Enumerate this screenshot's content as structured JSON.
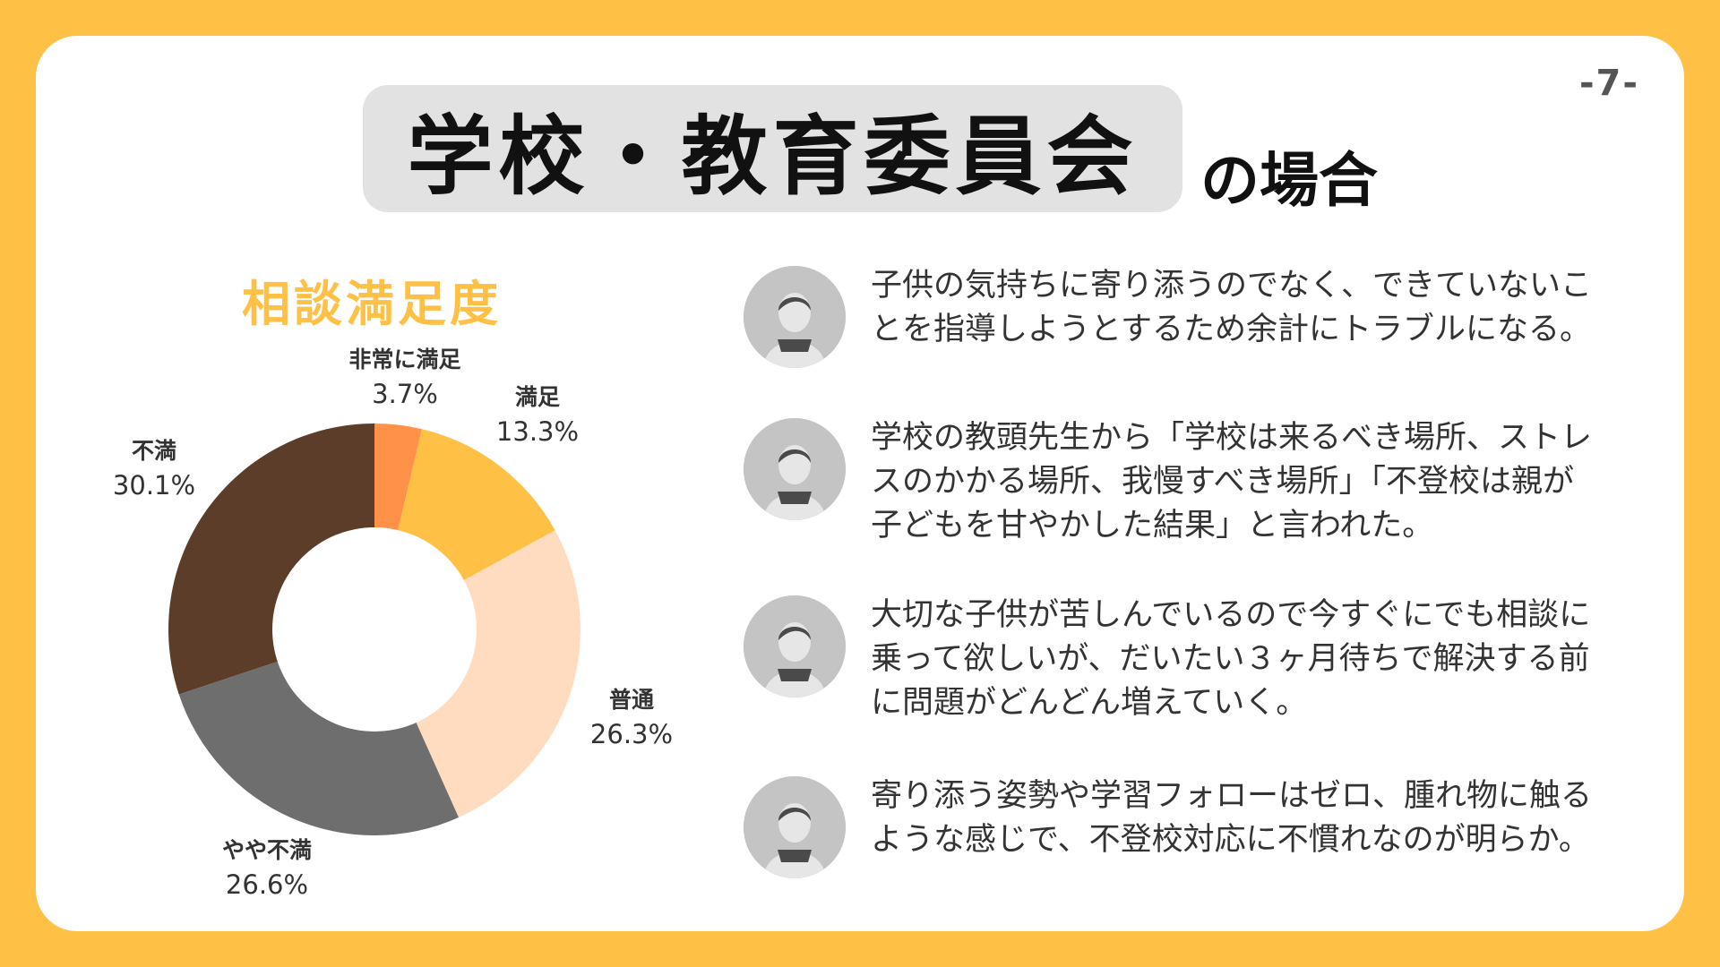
{
  "page_number": "-7-",
  "title": {
    "main": "学校・教育委員会",
    "sub": "の場合"
  },
  "chart_data": {
    "type": "pie",
    "title": "相談満足度",
    "hole": true,
    "categories": [
      "非常に満足",
      "満足",
      "普通",
      "やや不満",
      "不満"
    ],
    "values": [
      3.7,
      13.3,
      26.3,
      26.6,
      30.1
    ],
    "value_labels": [
      "3.7%",
      "13.3%",
      "26.3%",
      "26.6%",
      "30.1%"
    ],
    "colors": [
      "#FF9248",
      "#FFC046",
      "#FFDCC0",
      "#6E6E6E",
      "#5C3D2A"
    ],
    "start": "12 o'clock",
    "direction": "clockwise"
  },
  "comments": [
    {
      "avatar_icon": "person-avatar-icon",
      "lines": [
        "子供の気持ちに寄り添うのでなく、できていないこ",
        "とを指導しようとするため余計にトラブルになる。"
      ]
    },
    {
      "avatar_icon": "person-avatar-icon",
      "lines": [
        "学校の教頭先生から「学校は来るべき場所、ストレ",
        "スのかかる場所、我慢すべき場所」「不登校は親が",
        "子どもを甘やかした結果」と言われた。"
      ]
    },
    {
      "avatar_icon": "person-avatar-icon",
      "lines": [
        "大切な子供が苦しんでいるので今すぐにでも相談に",
        "乗って欲しいが、だいたい３ヶ月待ちで解決する前",
        "に問題がどんどん増えていく。"
      ]
    },
    {
      "avatar_icon": "person-avatar-icon",
      "lines": [
        "寄り添う姿勢や学習フォローはゼロ、腫れ物に触る",
        "ような感じで、不登校対応に不慣れなのが明らか。"
      ]
    }
  ],
  "colors": {
    "background": "#FFC046",
    "card": "#FFFFFF",
    "title_box": "#E2E2E2",
    "chart_title": "#FFC046",
    "avatar": "#C4C4C4"
  }
}
